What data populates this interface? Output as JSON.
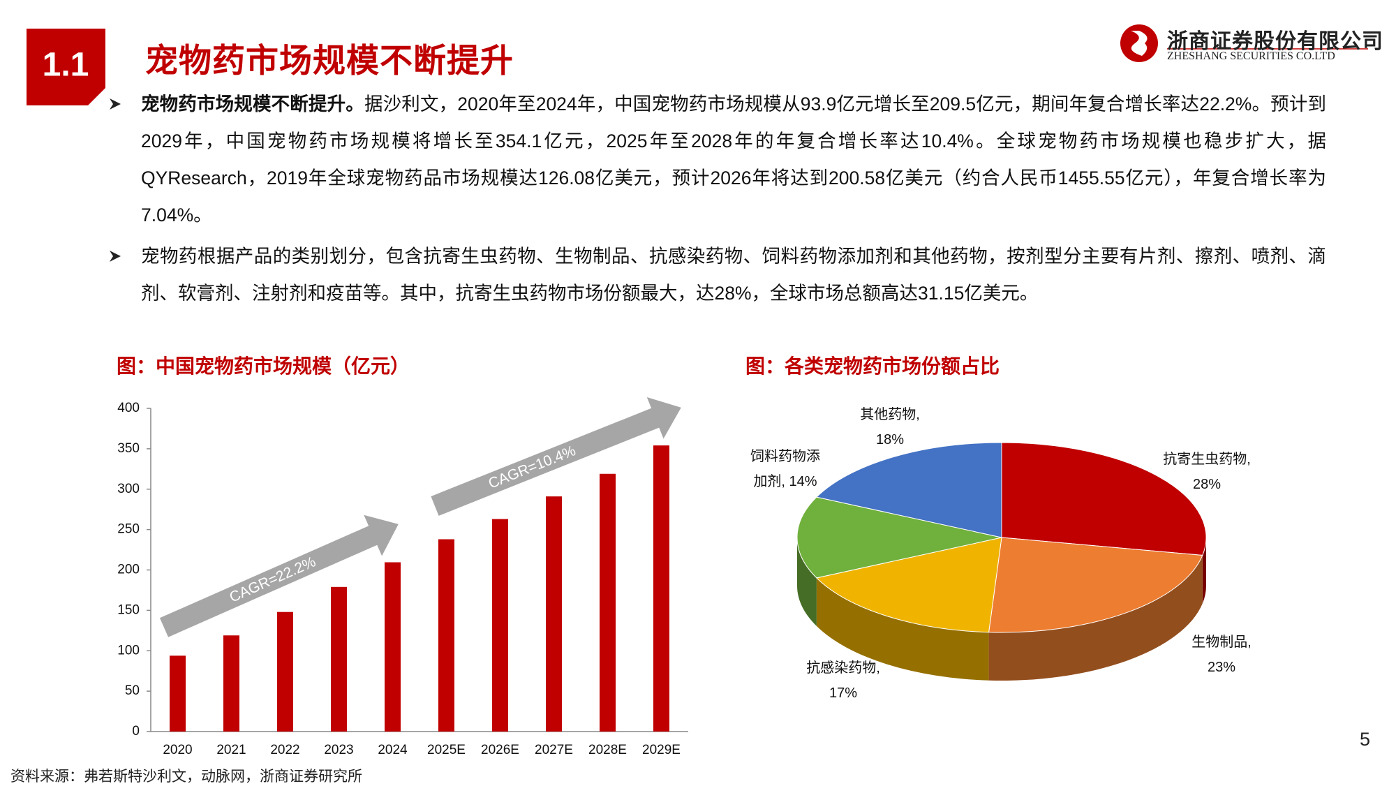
{
  "header": {
    "section": "1.1",
    "title": "宠物药市场规模不断提升",
    "company": "浙商证券股份有限公司",
    "company_en": "ZHESHANG SECURITIES CO.LTD"
  },
  "bullets": [
    {
      "bold": "宠物药市场规模不断提升。",
      "text": "据沙利文，2020年至2024年，中国宠物药市场规模从93.9亿元增长至209.5亿元，期间年复合增长率达22.2%。预计到2029年，中国宠物药市场规模将增长至354.1亿元，2025年至2028年的年复合增长率达10.4%。全球宠物药市场规模也稳步扩大，据QYResearch，2019年全球宠物药品市场规模达126.08亿美元，预计2026年将达到200.58亿美元（约合人民币1455.55亿元），年复合增长率为7.04%。"
    },
    {
      "text": "宠物药根据产品的类别划分，包含抗寄生虫药物、生物制品、抗感染药物、饲料药物添加剂和其他药物，按剂型分主要有片剂、擦剂、喷剂、滴剂、软膏剂、注射剂和疫苗等。其中，抗寄生虫药物市场份额最大，达28%，全球市场总额高达31.15亿美元。"
    }
  ],
  "chart_data": [
    {
      "type": "bar",
      "title": "图：中国宠物药市场规模（亿元）",
      "categories": [
        "2020",
        "2021",
        "2022",
        "2023",
        "2024",
        "2025E",
        "2026E",
        "2027E",
        "2028E",
        "2029E"
      ],
      "values": [
        93.9,
        119,
        148,
        179,
        209.5,
        238,
        263,
        291,
        319,
        354.1
      ],
      "color": "#c00000",
      "ylim": [
        0,
        400
      ],
      "yticks": [
        0,
        50,
        100,
        150,
        200,
        250,
        300,
        350,
        400
      ],
      "annotations": [
        "CAGR=22.2%",
        "CAGR=10.4%"
      ]
    },
    {
      "type": "pie",
      "title": "图：各类宠物药市场份额占比",
      "categories": [
        "抗寄生虫药物,",
        "生物制品,",
        "抗感染药物,",
        "饲料药物添加剂,",
        "其他药物,"
      ],
      "values": [
        28,
        23,
        17,
        14,
        18
      ],
      "value_labels": [
        "28%",
        "23%",
        "17%",
        "14%",
        "18%"
      ],
      "colors": [
        "#c00000",
        "#ed7d31",
        "#f0b400",
        "#70b03c",
        "#4472c4"
      ]
    }
  ],
  "source": "资料来源：弗若斯特沙利文，动脉网，浙商证券研究所",
  "page_number": "5"
}
